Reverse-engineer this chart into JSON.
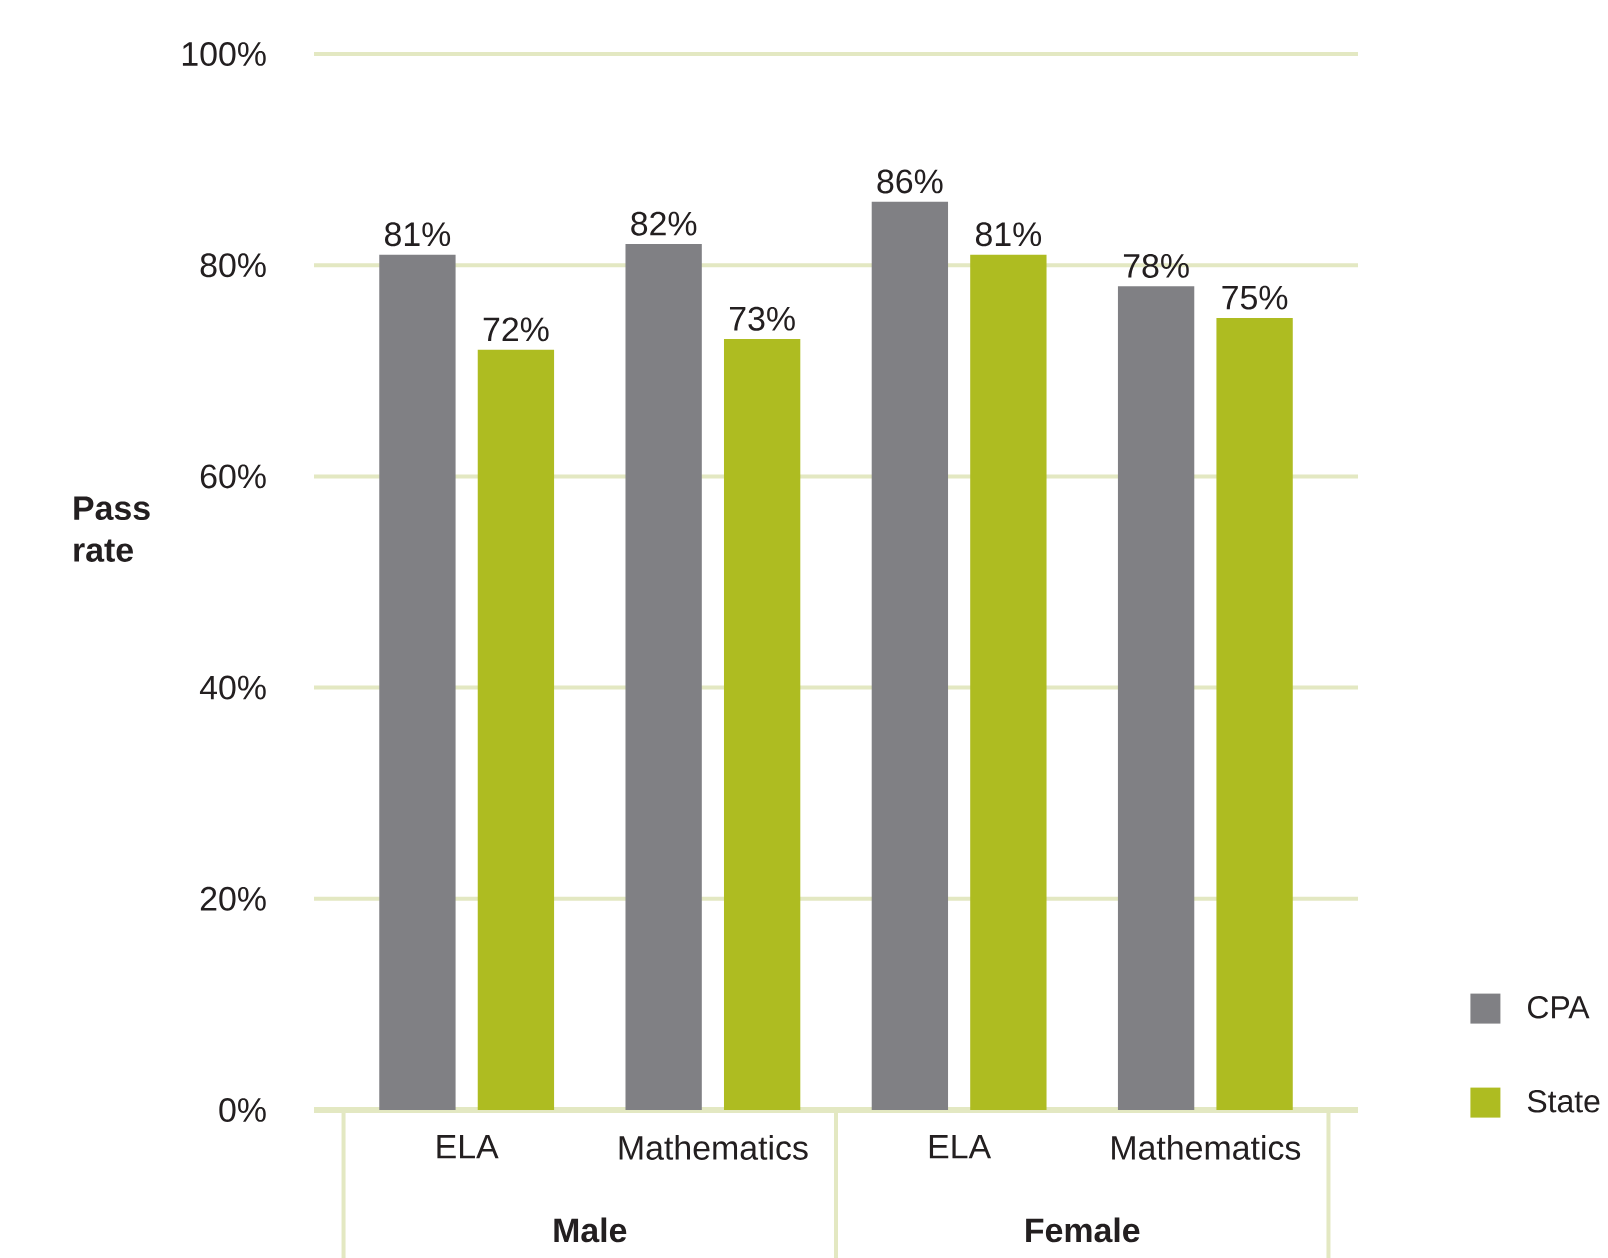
{
  "chart_data": {
    "type": "bar",
    "ylabel": "Pass rate",
    "categories": [
      "ELA",
      "Mathematics",
      "ELA",
      "Mathematics"
    ],
    "series": [
      {
        "name": "CPA",
        "color": "#808084",
        "values": [
          81,
          82,
          86,
          78
        ],
        "value_labels": [
          "81%",
          "82%",
          "86%",
          "78%"
        ]
      },
      {
        "name": "State",
        "color": "#aebc21",
        "values": [
          72,
          73,
          81,
          75
        ],
        "value_labels": [
          "72%",
          "73%",
          "81%",
          "75%"
        ]
      }
    ],
    "ylim": [
      0,
      100
    ],
    "yticks": [
      {
        "value": 0,
        "label": "0%"
      },
      {
        "value": 20,
        "label": "20%"
      },
      {
        "value": 40,
        "label": "40%"
      },
      {
        "value": 60,
        "label": "60%"
      },
      {
        "value": 80,
        "label": "80%"
      },
      {
        "value": 100,
        "label": "100%"
      }
    ],
    "grid": "y",
    "legend": "bottom right",
    "annotations": [
      "Male",
      "Female"
    ]
  }
}
